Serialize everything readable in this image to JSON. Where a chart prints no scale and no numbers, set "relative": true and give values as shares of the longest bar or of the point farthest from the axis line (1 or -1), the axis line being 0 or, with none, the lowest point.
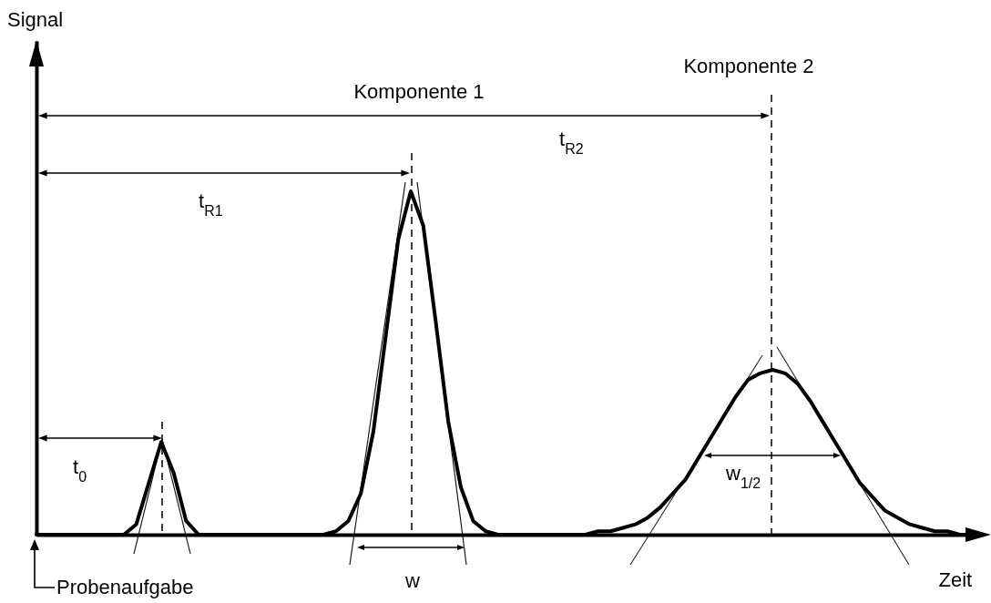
{
  "chart_data": {
    "type": "line",
    "relative": true,
    "xlabel": "Zeit",
    "annotations": [
      "Komponente 1",
      "Komponente 2",
      "t$_{R1}$",
      "t$_{R2}$",
      "t$_{0}$",
      "w",
      "w$_{1/2}$",
      "Probenaufgabe",
      "Signal"
    ],
    "categories": [
      null,
      null,
      null,
      null,
      null,
      null,
      null,
      null,
      null,
      null,
      null,
      null,
      null,
      null,
      null,
      null,
      null,
      null,
      null,
      null,
      null,
      null,
      null,
      null,
      null,
      null,
      null,
      null,
      null,
      null,
      null,
      null,
      null,
      null,
      null,
      null,
      null,
      null,
      null,
      null,
      null,
      null,
      null,
      null,
      null,
      null,
      null,
      null,
      null,
      null,
      null,
      null,
      null,
      null,
      null,
      null,
      null,
      null,
      null,
      null,
      null,
      null,
      null,
      null,
      null,
      null,
      null,
      null,
      null,
      null,
      null,
      null,
      null,
      null,
      null,
      null
    ],
    "series": [
      {
        "color": "#000000",
        "values": [
          0,
          0,
          0,
          0,
          0,
          0,
          0,
          0,
          0.03,
          0.15,
          0.27,
          0.18,
          0.04,
          0,
          0,
          0,
          0,
          0,
          0,
          0,
          0,
          0,
          0,
          0,
          0.01,
          0.04,
          0.12,
          0.3,
          0.58,
          0.86,
          1,
          0.9,
          0.62,
          0.33,
          0.14,
          0.04,
          0.01,
          0,
          0,
          0,
          0,
          0,
          0,
          0,
          0,
          0.01,
          0.01,
          0.02,
          0.03,
          0.05,
          0.08,
          0.12,
          0.16,
          0.22,
          0.28,
          0.34,
          0.4,
          0.45,
          0.47,
          0.48,
          0.47,
          0.44,
          0.39,
          0.33,
          0.27,
          0.21,
          0.15,
          0.11,
          0.07,
          0.05,
          0.03,
          0.02,
          0.01,
          0.01,
          0,
          0
        ]
      }
    ]
  }
}
